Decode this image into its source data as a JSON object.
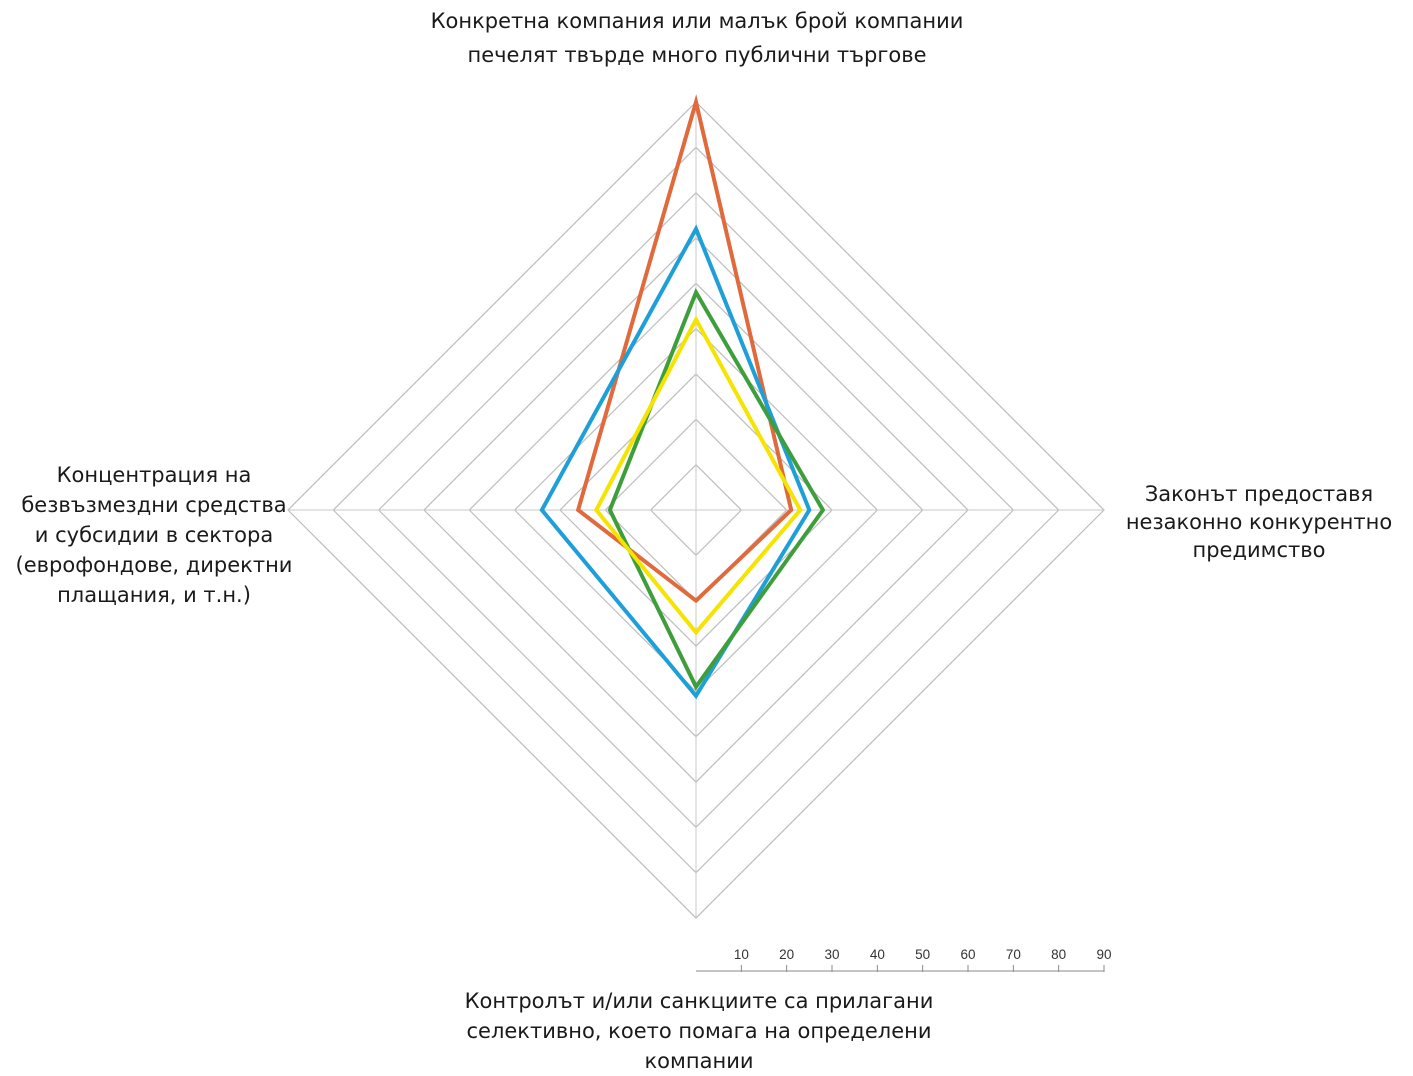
{
  "chart_data": {
    "type": "radar",
    "axes": [
      {
        "name": "top",
        "label_lines": [
          "Конкретна компания или малък брой компании",
          "печелят твърде много публични търгове"
        ]
      },
      {
        "name": "right",
        "label_lines": [
          "Законът предоставя",
          "незаконно конкурентно",
          "предимство"
        ]
      },
      {
        "name": "bottom",
        "label_lines": [
          "Контролът и/или санкциите са прилагани",
          "селективно, което помага на определени",
          "компании"
        ]
      },
      {
        "name": "left",
        "label_lines": [
          "Концентрация на",
          "безвъзмездни средства",
          "и субсидии в сектора",
          "(еврофондове, директни",
          "плащания, и т.н.)"
        ]
      }
    ],
    "rmax": 90,
    "grid_rings": [
      10,
      20,
      30,
      40,
      50,
      60,
      70,
      80,
      90
    ],
    "scale_ticks": [
      "10",
      "20",
      "30",
      "40",
      "50",
      "60",
      "70",
      "80",
      "90"
    ],
    "series": [
      {
        "color": "#e06a3c",
        "values": [
          90,
          21,
          20,
          26
        ]
      },
      {
        "color": "#1f9fd8",
        "values": [
          62,
          25,
          41,
          34
        ]
      },
      {
        "color": "#3f9e3c",
        "values": [
          48,
          28,
          39,
          19
        ]
      },
      {
        "color": "#f5e300",
        "values": [
          42,
          23,
          27,
          22
        ]
      }
    ],
    "legend": "none",
    "grid": true
  }
}
